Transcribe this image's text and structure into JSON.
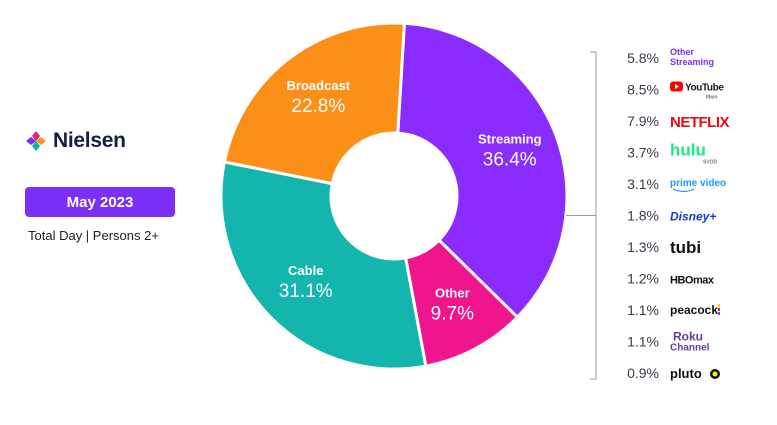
{
  "logo": {
    "name": "Nielsen",
    "colors": [
      "#e5207f",
      "#7b2ff7",
      "#00b5ad",
      "#f7941d"
    ]
  },
  "date_label": "May 2023",
  "subtitle": "Total Day | Persons 2+",
  "colors": {
    "Streaming": "#8a2cff",
    "Other": "#f0158c",
    "Cable": "#13b5ad",
    "Broadcast": "#fb8f17",
    "badge": "#7b2ff7"
  },
  "chart_data": {
    "type": "pie",
    "donut": true,
    "slices": [
      {
        "label": "Streaming",
        "value": 36.4,
        "display": "36.4%"
      },
      {
        "label": "Other",
        "value": 9.7,
        "display": "9.7%"
      },
      {
        "label": "Cable",
        "value": 31.1,
        "display": "31.1%"
      },
      {
        "label": "Broadcast",
        "value": 22.8,
        "display": "22.8%"
      }
    ],
    "streaming_breakdown": [
      {
        "value": 5.8,
        "display": "5.8%",
        "brand": "Other Streaming",
        "brand_lines": [
          "Other",
          "Streaming"
        ],
        "color": "#7b2ff7",
        "icon": "other-streaming-logo"
      },
      {
        "value": 8.5,
        "display": "8.5%",
        "brand": "YouTube",
        "sub": "Main",
        "color": "#1a1a1a",
        "icon": "youtube-logo"
      },
      {
        "value": 7.9,
        "display": "7.9%",
        "brand": "NETFLIX",
        "color": "#e50914",
        "icon": "netflix-logo"
      },
      {
        "value": 3.7,
        "display": "3.7%",
        "brand": "hulu",
        "sub": "SVOD",
        "color": "#1ce783",
        "icon": "hulu-logo"
      },
      {
        "value": 3.1,
        "display": "3.1%",
        "brand": "prime video",
        "color": "#1a98ff",
        "icon": "prime-video-logo"
      },
      {
        "value": 1.8,
        "display": "1.8%",
        "brand": "Disney+",
        "color": "#113ccf",
        "icon": "disney-plus-logo"
      },
      {
        "value": 1.3,
        "display": "1.3%",
        "brand": "tubi",
        "color": "#111111",
        "icon": "tubi-logo"
      },
      {
        "value": 1.2,
        "display": "1.2%",
        "brand": "HBOmax",
        "color": "#111111",
        "icon": "hbo-max-logo"
      },
      {
        "value": 1.1,
        "display": "1.1%",
        "brand": "peacock",
        "color": "#111111",
        "icon": "peacock-logo"
      },
      {
        "value": 1.1,
        "display": "1.1%",
        "brand": "Roku Channel",
        "brand_lines": [
          "Roku",
          "Channel"
        ],
        "color": "#6c3c97",
        "icon": "roku-channel-logo"
      },
      {
        "value": 0.9,
        "display": "0.9%",
        "brand": "pluto",
        "color": "#111111",
        "icon": "pluto-tv-logo"
      }
    ]
  }
}
